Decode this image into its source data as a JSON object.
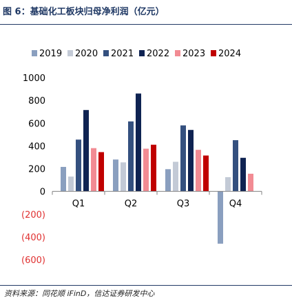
{
  "figure": {
    "title": "图 6：基础化工板块归母净利润（亿元）",
    "source": "资料来源：同花顺 iFinD，信达证券研发中心"
  },
  "chart_data": {
    "type": "bar",
    "categories": [
      "Q1",
      "Q2",
      "Q3",
      "Q4"
    ],
    "series": [
      {
        "name": "2019",
        "color": "#8a9fbf",
        "values": [
          215,
          280,
          195,
          -460
        ]
      },
      {
        "name": "2020",
        "color": "#c3cad6",
        "values": [
          130,
          255,
          260,
          125
        ]
      },
      {
        "name": "2021",
        "color": "#34507f",
        "values": [
          455,
          615,
          580,
          450
        ]
      },
      {
        "name": "2022",
        "color": "#0f2352",
        "values": [
          715,
          860,
          540,
          295
        ]
      },
      {
        "name": "2023",
        "color": "#f28b93",
        "values": [
          380,
          375,
          365,
          155
        ]
      },
      {
        "name": "2024",
        "color": "#c00000",
        "values": [
          345,
          410,
          315,
          null
        ]
      }
    ],
    "ylim": [
      -600,
      1000
    ],
    "yticks": [
      {
        "value": 1000,
        "label": "1000"
      },
      {
        "value": 800,
        "label": "800"
      },
      {
        "value": 600,
        "label": "600"
      },
      {
        "value": 400,
        "label": "400"
      },
      {
        "value": 200,
        "label": "200"
      },
      {
        "value": 0,
        "label": "0"
      },
      {
        "value": -200,
        "label": "(200)"
      },
      {
        "value": -400,
        "label": "(400)"
      },
      {
        "value": -600,
        "label": "(600)"
      }
    ],
    "negative_tick_color": "#e03030",
    "grid": false,
    "legend_position": "top"
  }
}
